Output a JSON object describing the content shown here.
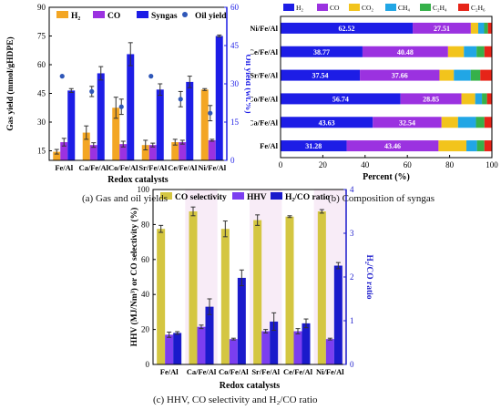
{
  "captions": {
    "a": "(a) Gas and oil yields",
    "b": "(b) Composition of syngas",
    "c": "(c) HHV, CO selectivity and H₂/CO ratio"
  },
  "colors": {
    "h2_gold": "#f3a624",
    "co_purple": "#9b32e0",
    "syngas_blue": "#1d1de6",
    "oil_dot": "#2f57b8",
    "co2_yellow": "#f2c41c",
    "ch4_cyan": "#21a6e5",
    "c2h4_green": "#36b14a",
    "c2h6_red": "#e62418",
    "cosel_khaki": "#d4c641",
    "hhv_violet": "#7b3ef0",
    "ratio_navy": "#1a1acb",
    "band_pink": "#f8ecf7"
  },
  "chart_data": [
    {
      "id": "a",
      "type": "bar",
      "categories": [
        "Fe/Al",
        "Ca/Fe/Al",
        "Co/Fe/Al",
        "Sr/Fe/Al",
        "Ce/Fe/Al",
        "Ni/Fe/Al"
      ],
      "xlabel": "Redox catalysts",
      "ylabel": "Gas yield (mmol/gHDPE)",
      "ylabel_right": "Oil yield (wt.%)",
      "ylim": [
        10,
        90
      ],
      "yticks": [
        15,
        30,
        45,
        60,
        75,
        90
      ],
      "ylim_right": [
        0,
        60
      ],
      "yticks_right": [
        0,
        15,
        30,
        45,
        60
      ],
      "legend": [
        "H₂",
        "CO",
        "Syngas",
        "Oil yield"
      ],
      "series": [
        {
          "name": "H₂",
          "values": [
            14.5,
            24.5,
            37.5,
            18,
            19.5,
            47
          ],
          "errors": [
            1.2,
            3.5,
            5.5,
            2.5,
            1.5,
            0.5
          ]
        },
        {
          "name": "CO",
          "values": [
            19.5,
            18,
            18.5,
            18,
            19.5,
            20.5
          ],
          "errors": [
            2,
            1.2,
            1.5,
            1,
            1,
            0.5
          ]
        },
        {
          "name": "Syngas",
          "values": [
            46.5,
            55.5,
            65.5,
            47,
            51,
            75
          ],
          "errors": [
            1,
            3.5,
            6,
            3,
            3,
            0.5
          ]
        },
        {
          "name": "Oil yield",
          "axis": "right",
          "values": [
            33,
            27,
            21,
            33,
            24,
            18.5
          ],
          "errors": [
            0,
            2,
            3,
            0,
            3,
            3
          ]
        }
      ]
    },
    {
      "id": "b",
      "type": "bar",
      "orientation": "horizontal-stacked",
      "categories": [
        "Ni/Fe/Al",
        "Ce/Fe/Al",
        "Sr/Fe/Al",
        "Co/Fe/Al",
        "Ca/Fe/Al",
        "Fe/Al"
      ],
      "xlabel": "Percent (%)",
      "ylabel": "Redox catalysts",
      "xlim": [
        0,
        100
      ],
      "xticks": [
        0,
        20,
        40,
        60,
        80,
        100
      ],
      "legend": [
        "H₂",
        "CO",
        "CO₂",
        "CH₄",
        "C₂H₄",
        "C₂H₆"
      ],
      "series": [
        {
          "name": "H₂",
          "values": [
            62.52,
            38.77,
            37.54,
            56.74,
            43.63,
            31.28
          ]
        },
        {
          "name": "CO",
          "values": [
            27.51,
            40.48,
            37.66,
            28.85,
            32.54,
            43.46
          ]
        },
        {
          "name": "CO₂",
          "values": [
            3.5,
            7.5,
            6.8,
            6.5,
            7.8,
            13.2
          ]
        },
        {
          "name": "CH₄",
          "values": [
            2.8,
            6.0,
            8.0,
            3.2,
            8.5,
            5.0
          ]
        },
        {
          "name": "C₂H₄",
          "values": [
            1.8,
            3.7,
            4.5,
            2.4,
            4.0,
            3.5
          ]
        },
        {
          "name": "C₂H₆",
          "values": [
            1.87,
            3.55,
            5.5,
            2.31,
            3.53,
            3.56
          ]
        }
      ]
    },
    {
      "id": "c",
      "type": "bar",
      "categories": [
        "Fe/Al",
        "Ca/Fe/Al",
        "Co/Fe/Al",
        "Sr/Fe/Al",
        "Ce/Fe/Al",
        "Ni/Fe/Al"
      ],
      "xlabel": "Redox catalysts",
      "ylabel": "HHV (MJ/Nm³) or CO selectivity (%)",
      "ylabel_right": "H₂/CO ratio",
      "ylim": [
        0,
        100
      ],
      "yticks": [
        0,
        20,
        40,
        60,
        80,
        100
      ],
      "ylim_right": [
        0,
        4
      ],
      "yticks_right": [
        0,
        1,
        2,
        3,
        4
      ],
      "legend": [
        "CO selectivity",
        "HHV",
        "H₂/CO ratio"
      ],
      "series": [
        {
          "name": "CO selectivity",
          "values": [
            77.5,
            87.5,
            77.5,
            82.5,
            84.5,
            87.5
          ],
          "errors": [
            2,
            2.5,
            4.5,
            3,
            0.5,
            1
          ]
        },
        {
          "name": "HHV",
          "values": [
            17,
            21.5,
            14.5,
            19,
            19,
            14.5
          ],
          "errors": [
            1.5,
            1,
            0.5,
            1,
            1.5,
            0.5
          ]
        },
        {
          "name": "H₂/CO ratio",
          "axis": "right",
          "values": [
            0.72,
            1.32,
            1.98,
            0.98,
            0.94,
            2.26
          ],
          "errors": [
            0.03,
            0.18,
            0.18,
            0.2,
            0.1,
            0.07
          ]
        }
      ]
    }
  ]
}
